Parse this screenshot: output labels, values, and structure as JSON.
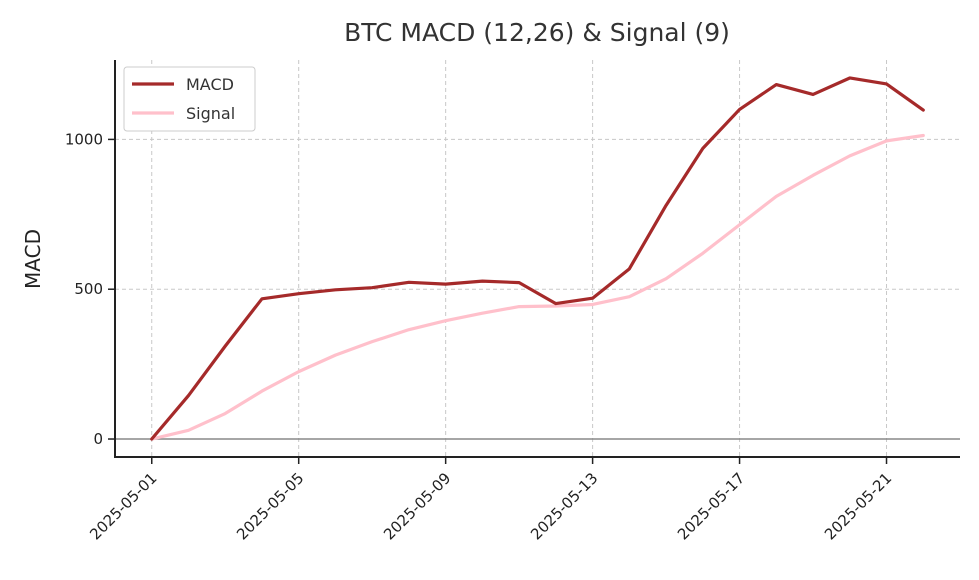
{
  "chart_data": {
    "type": "line",
    "title": "BTC MACD (12,26) & Signal (9)",
    "xlabel": "",
    "ylabel": "MACD",
    "x": [
      "2025-05-01",
      "2025-05-02",
      "2025-05-03",
      "2025-05-04",
      "2025-05-05",
      "2025-05-06",
      "2025-05-07",
      "2025-05-08",
      "2025-05-09",
      "2025-05-10",
      "2025-05-11",
      "2025-05-12",
      "2025-05-13",
      "2025-05-14",
      "2025-05-15",
      "2025-05-16",
      "2025-05-17",
      "2025-05-18",
      "2025-05-19",
      "2025-05-20",
      "2025-05-21",
      "2025-05-22"
    ],
    "x_tick_labels": [
      "2025-05-01",
      "2025-05-05",
      "2025-05-09",
      "2025-05-13",
      "2025-05-17",
      "2025-05-21"
    ],
    "y_tick_labels": [
      "0",
      "500",
      "1000"
    ],
    "y_ticks": [
      0,
      500,
      1000
    ],
    "ylim": [
      -60,
      1265
    ],
    "xlim": [
      "2025-04-30",
      "2025-05-23"
    ],
    "series": [
      {
        "name": "MACD",
        "color": "#a52a2a",
        "values": [
          0,
          145,
          310,
          468,
          485,
          498,
          505,
          523,
          517,
          527,
          522,
          452,
          470,
          568,
          780,
          970,
          1100,
          1183,
          1150,
          1205,
          1185,
          1098
        ]
      },
      {
        "name": "Signal",
        "color": "#ffc0cb",
        "values": [
          0,
          29,
          85,
          160,
          225,
          280,
          325,
          365,
          395,
          420,
          442,
          444,
          449,
          475,
          535,
          620,
          715,
          810,
          880,
          945,
          995,
          1013
        ]
      }
    ],
    "zero_line": true,
    "grid": true,
    "legend": "top-left"
  }
}
